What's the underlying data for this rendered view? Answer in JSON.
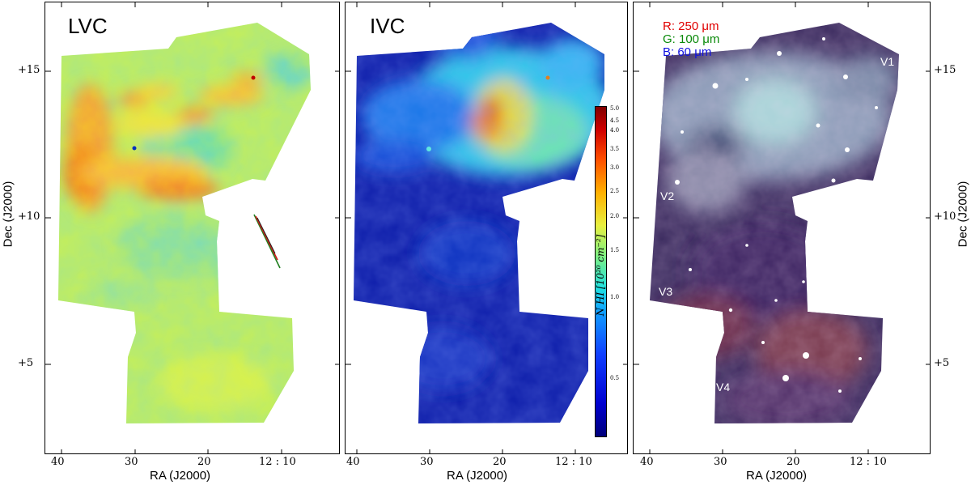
{
  "panels": [
    {
      "title": "LVC"
    },
    {
      "title": "IVC"
    },
    {
      "title": ""
    }
  ],
  "axes": {
    "xlabel": "RA (J2000)",
    "ylabel": "Dec (J2000)",
    "xticks": [
      "40",
      "30",
      "20",
      "12 : 10"
    ],
    "yticks": [
      "+15",
      "+10",
      "+5"
    ]
  },
  "colorbar": {
    "label": "N_HI [10^20 cm^-2]",
    "label_display": "N HI [10²⁰ cm⁻²]",
    "ticks": [
      "5.0",
      "4.5",
      "4.0",
      "3.5",
      "3.0",
      "2.5",
      "2.0",
      "1.5",
      "1.0",
      "0.5"
    ]
  },
  "legend": {
    "r": "R: 250 μm",
    "g": "G: 100 μm",
    "b": "B:   60 μm",
    "r_color": "#e00000",
    "g_color": "#0a8a0a",
    "b_color": "#1010e0"
  },
  "region_labels": [
    "V1",
    "V2",
    "V3",
    "V4"
  ]
}
